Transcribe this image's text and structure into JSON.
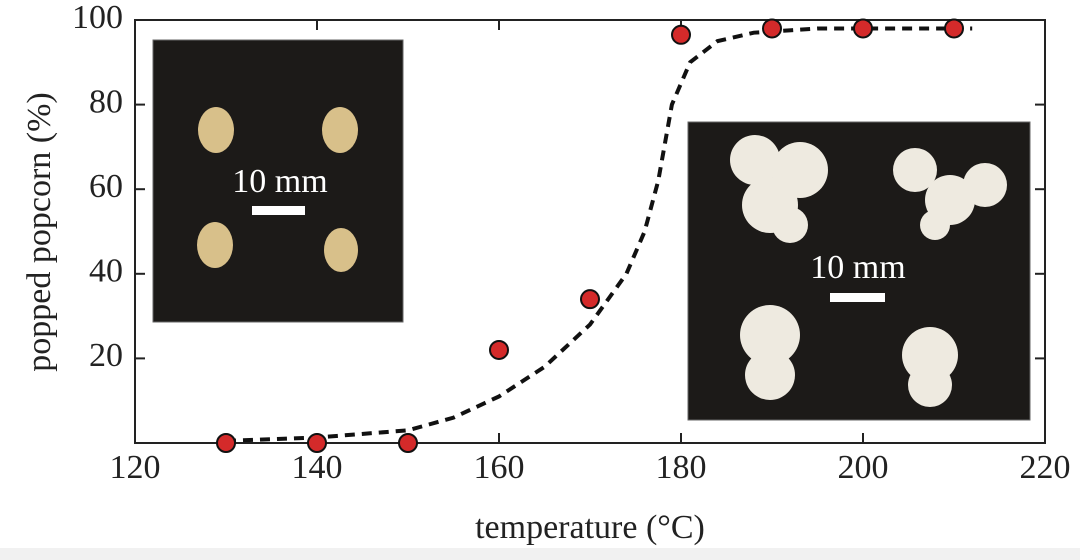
{
  "chart_data": {
    "type": "scatter",
    "xlabel": "temperature (°C)",
    "ylabel": "popped popcorn (%)",
    "xlim": [
      120,
      220
    ],
    "xticks": [
      120,
      140,
      160,
      180,
      200,
      220
    ],
    "ylim": [
      0,
      100
    ],
    "yticks": [
      20,
      40,
      60,
      80,
      100
    ],
    "series": [
      {
        "color": "#d42a2a",
        "marker": "circle",
        "x": [
          130,
          140,
          150,
          160,
          170,
          180,
          190,
          200,
          210
        ],
        "values": [
          0,
          0,
          0,
          22,
          34,
          96.5,
          98,
          98,
          98
        ]
      },
      {
        "color": "#111111",
        "style": "dashed",
        "x": [
          130,
          140,
          150,
          155,
          160,
          165,
          170,
          174,
          176,
          177.5,
          179,
          181,
          184,
          188,
          195,
          212
        ],
        "values": [
          0.5,
          1.3,
          3,
          6,
          11,
          18,
          28,
          40,
          50,
          62,
          80,
          90,
          95,
          97,
          98,
          98
        ]
      }
    ],
    "annotations": [
      "10 mm",
      "10 mm"
    ]
  }
}
